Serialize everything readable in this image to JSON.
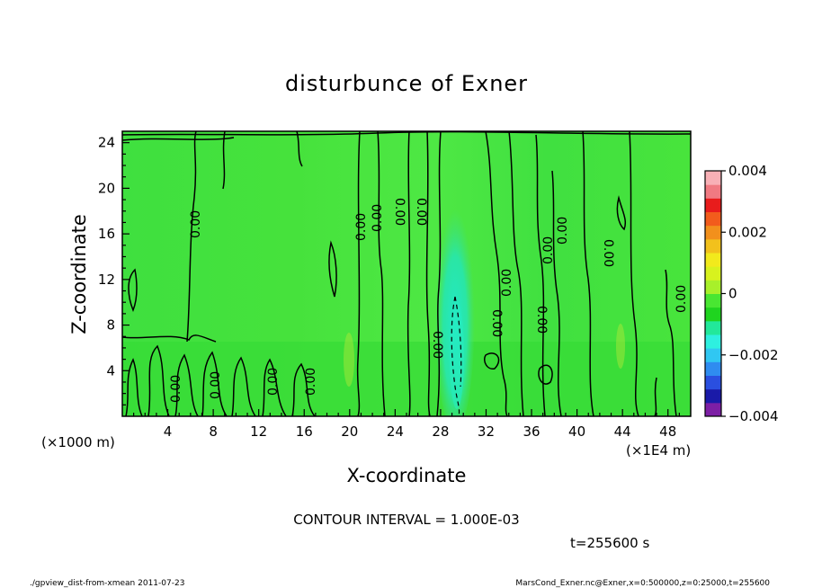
{
  "chart_data": {
    "type": "heatmap",
    "title": "disturbunce of Exner",
    "xlabel": "X-coordinate",
    "ylabel": "Z-coordinate",
    "x_unit_left": "(×1000 m)",
    "x_unit_right": "(×1E4 m)",
    "xlim": [
      0,
      50
    ],
    "ylim": [
      0,
      25
    ],
    "x_ticks": [
      "4",
      "8",
      "12",
      "16",
      "20",
      "24",
      "28",
      "32",
      "36",
      "40",
      "44",
      "48"
    ],
    "y_ticks": [
      "4",
      "8",
      "12",
      "16",
      "20",
      "24"
    ],
    "colorbar": {
      "range": [
        -0.004,
        0.004
      ],
      "tick_labels": [
        "0.004",
        "0.002",
        "0",
        "−0.002",
        "−0.004"
      ],
      "colors": [
        "#7d1fa5",
        "#1a1aa8",
        "#2a4fe0",
        "#2f8cf0",
        "#30c7f2",
        "#2ef0e0",
        "#22e89a",
        "#1fd41f",
        "#49e632",
        "#a8f02a",
        "#d8f21e",
        "#f2ea1c",
        "#f2c11c",
        "#f2901c",
        "#f25c1c",
        "#e81c1c",
        "#f07a82",
        "#f8b0b6"
      ]
    },
    "contour_interval_text": "CONTOUR INTERVAL = 1.000E-03",
    "contour_label": "0.00",
    "time_text": "t=255600 s"
  },
  "footer": {
    "left": "./gpview_dist-from-xmean  2011-07-23",
    "right": "MarsCond_Exner.nc@Exner,x=0:500000,z=0:25000,t=255600"
  }
}
